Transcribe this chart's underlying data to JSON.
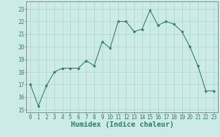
{
  "x": [
    0,
    1,
    2,
    3,
    4,
    5,
    6,
    7,
    8,
    9,
    10,
    11,
    12,
    13,
    14,
    15,
    16,
    17,
    18,
    19,
    20,
    21,
    22,
    23
  ],
  "y": [
    17.0,
    15.3,
    16.9,
    18.0,
    18.3,
    18.3,
    18.3,
    18.9,
    18.5,
    20.4,
    19.9,
    22.0,
    22.0,
    21.2,
    21.4,
    22.9,
    21.7,
    22.0,
    21.8,
    21.2,
    20.0,
    18.5,
    16.5,
    16.5
  ],
  "xlabel": "Humidex (Indice chaleur)",
  "ylim": [
    14.8,
    23.6
  ],
  "xlim": [
    -0.5,
    23.5
  ],
  "yticks": [
    15,
    16,
    17,
    18,
    19,
    20,
    21,
    22,
    23
  ],
  "xticks": [
    0,
    1,
    2,
    3,
    4,
    5,
    6,
    7,
    8,
    9,
    10,
    11,
    12,
    13,
    14,
    15,
    16,
    17,
    18,
    19,
    20,
    21,
    22,
    23
  ],
  "line_color": "#2e7d6e",
  "marker": "*",
  "marker_size": 3,
  "bg_color": "#cceae7",
  "grid_color": "#aad4d0",
  "xlabel_fontsize": 7.5,
  "tick_fontsize": 5.5
}
